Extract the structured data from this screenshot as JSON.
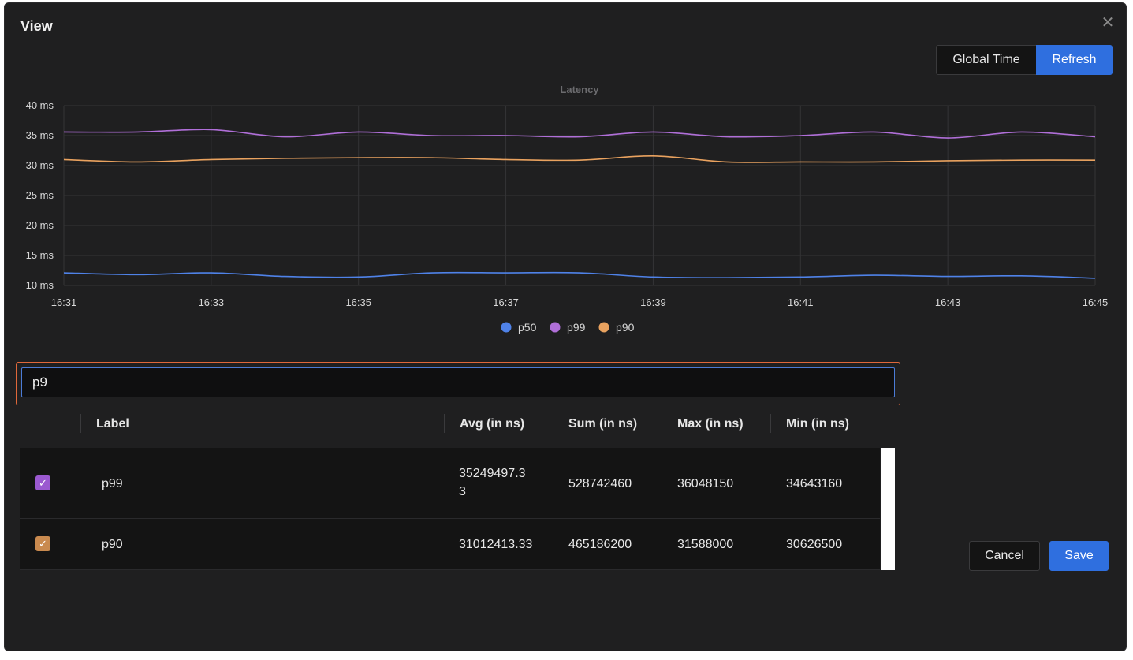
{
  "dialog": {
    "title": "View",
    "close_icon": "close-icon"
  },
  "header_buttons": {
    "global_time": "Global Time",
    "refresh": "Refresh"
  },
  "chart_data": {
    "type": "line",
    "title": "Latency",
    "xlabel": "",
    "ylabel": "",
    "x": [
      "16:31",
      "16:32",
      "16:33",
      "16:34",
      "16:35",
      "16:36",
      "16:37",
      "16:38",
      "16:39",
      "16:40",
      "16:41",
      "16:42",
      "16:43",
      "16:44",
      "16:45"
    ],
    "x_tick_labels": [
      "16:31",
      "16:33",
      "16:35",
      "16:37",
      "16:39",
      "16:41",
      "16:43",
      "16:45"
    ],
    "y_tick_labels": [
      "40 ms",
      "35 ms",
      "30 ms",
      "25 ms",
      "20 ms",
      "15 ms",
      "10 ms"
    ],
    "ylim": [
      10,
      40
    ],
    "grid": true,
    "legend_position": "bottom-center",
    "series": [
      {
        "name": "p50",
        "color": "#4f82e8",
        "values": [
          12.1,
          11.8,
          12.1,
          11.5,
          11.4,
          12.1,
          12.1,
          12.1,
          11.4,
          11.3,
          11.4,
          11.7,
          11.5,
          11.6,
          11.2
        ]
      },
      {
        "name": "p99",
        "color": "#b06fd8",
        "values": [
          35.6,
          35.6,
          36.0,
          34.8,
          35.6,
          35.0,
          35.0,
          34.8,
          35.6,
          34.8,
          35.0,
          35.6,
          34.6,
          35.6,
          34.8
        ]
      },
      {
        "name": "p90",
        "color": "#e9a25f",
        "values": [
          31.0,
          30.6,
          31.0,
          31.2,
          31.3,
          31.3,
          31.0,
          30.9,
          31.6,
          30.6,
          30.6,
          30.6,
          30.8,
          30.9,
          30.9
        ]
      }
    ]
  },
  "search": {
    "value": "p9",
    "placeholder": ""
  },
  "table": {
    "columns": [
      "Label",
      "Avg (in ns)",
      "Sum (in ns)",
      "Max (in ns)",
      "Min (in ns)"
    ],
    "rows": [
      {
        "color": "#9b59d0",
        "label": "p99",
        "avg_line1": "35249497.3",
        "avg_line2": "3",
        "sum": "528742460",
        "max": "36048150",
        "min": "34643160"
      },
      {
        "color": "#c98a4f",
        "label": "p90",
        "avg_line1": "31012413.33",
        "avg_line2": "",
        "sum": "465186200",
        "max": "31588000",
        "min": "30626500"
      }
    ]
  },
  "footer_buttons": {
    "cancel": "Cancel",
    "save": "Save"
  }
}
